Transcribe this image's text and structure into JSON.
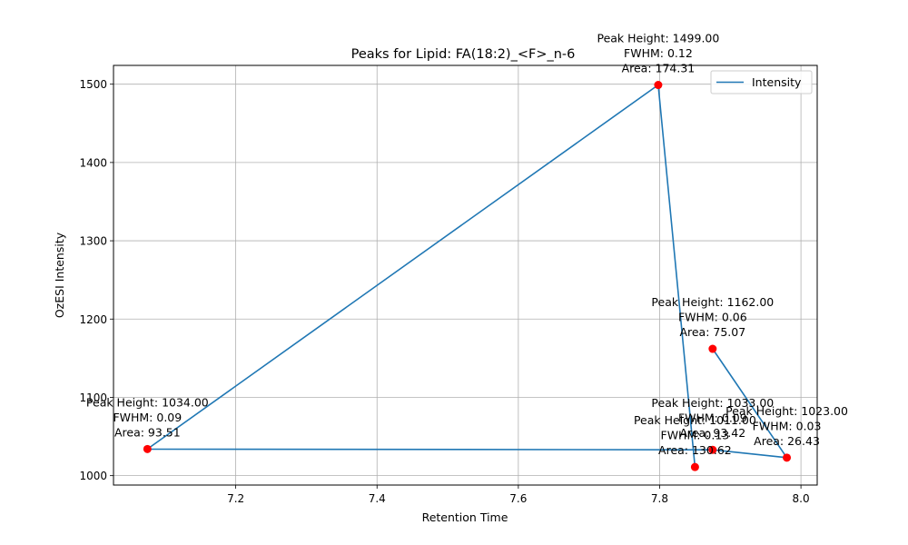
{
  "chart_data": {
    "type": "line",
    "title": "Peaks for Lipid: FA(18:2)_<F>_n-6",
    "xlabel": "Retention Time",
    "ylabel": "OzESI Intensity",
    "xlim": [
      7.027,
      8.023
    ],
    "ylim": [
      988,
      1524
    ],
    "xticks": [
      7.2,
      7.4,
      7.6,
      7.8,
      8.0
    ],
    "xtick_labels": [
      "7.2",
      "7.4",
      "7.6",
      "7.8",
      "8.0"
    ],
    "yticks": [
      1000,
      1100,
      1200,
      1300,
      1400,
      1500
    ],
    "ytick_labels": [
      "1000",
      "1100",
      "1200",
      "1300",
      "1400",
      "1500"
    ],
    "grid": true,
    "legend": {
      "position": "top-right",
      "entries": [
        "Intensity"
      ]
    },
    "series": [
      {
        "name": "Intensity",
        "color": "#1f77b4",
        "x": [
          7.875,
          7.98,
          7.875,
          7.075,
          7.798,
          7.85
        ],
        "y": [
          1162,
          1023,
          1033,
          1034,
          1499,
          1011
        ]
      }
    ],
    "peaks": {
      "color": "#ff0000",
      "points": [
        {
          "x": 7.075,
          "y": 1034,
          "lines": [
            "Peak Height: 1034.00",
            "FWHM: 0.09",
            "Area: 93.51"
          ]
        },
        {
          "x": 7.798,
          "y": 1499,
          "lines": [
            "Peak Height: 1499.00",
            "FWHM: 0.12",
            "Area: 174.31"
          ]
        },
        {
          "x": 7.85,
          "y": 1011,
          "lines": [
            "Peak Height: 1011.00",
            "FWHM: 0.13",
            "Area: 130.62"
          ]
        },
        {
          "x": 7.875,
          "y": 1033,
          "lines": [
            "Peak Height: 1033.00",
            "FWHM: 0.09",
            "Area: 93.42"
          ]
        },
        {
          "x": 7.875,
          "y": 1162,
          "lines": [
            "Peak Height: 1162.00",
            "FWHM: 0.06",
            "Area: 75.07"
          ]
        },
        {
          "x": 7.98,
          "y": 1023,
          "lines": [
            "Peak Height: 1023.00",
            "FWHM: 0.03",
            "Area: 26.43"
          ]
        }
      ]
    }
  }
}
